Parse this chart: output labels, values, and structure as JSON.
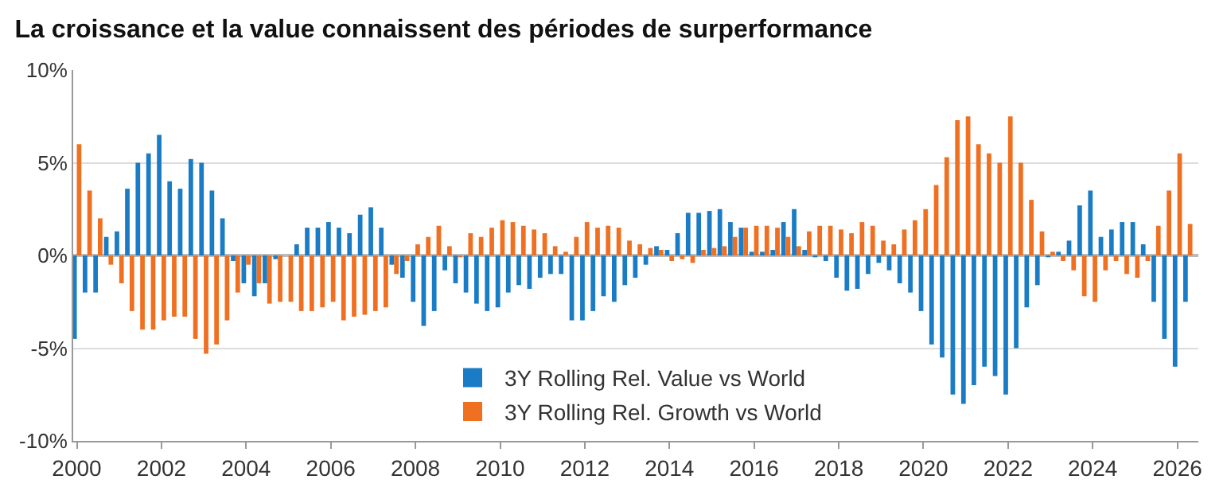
{
  "chart_data": {
    "type": "bar",
    "title": "La croissance et la value connaissent des périodes de surperformance",
    "x": [
      "2000-01",
      "2000-04",
      "2000-07",
      "2000-10",
      "2001-01",
      "2001-04",
      "2001-07",
      "2001-10",
      "2002-01",
      "2002-04",
      "2002-07",
      "2002-10",
      "2003-01",
      "2003-04",
      "2003-07",
      "2003-10",
      "2004-01",
      "2004-04",
      "2004-07",
      "2004-10",
      "2005-01",
      "2005-04",
      "2005-07",
      "2005-10",
      "2006-01",
      "2006-04",
      "2006-07",
      "2006-10",
      "2007-01",
      "2007-04",
      "2007-07",
      "2007-10",
      "2008-01",
      "2008-04",
      "2008-07",
      "2008-10",
      "2009-01",
      "2009-04",
      "2009-07",
      "2009-10",
      "2010-01",
      "2010-04",
      "2010-07",
      "2010-10",
      "2011-01",
      "2011-04",
      "2011-07",
      "2011-10",
      "2012-01",
      "2012-04",
      "2012-07",
      "2012-10",
      "2013-01",
      "2013-04",
      "2013-07",
      "2013-10",
      "2014-01",
      "2014-04",
      "2014-07",
      "2014-10",
      "2015-01",
      "2015-04",
      "2015-07",
      "2015-10",
      "2016-01",
      "2016-04",
      "2016-07",
      "2016-10",
      "2017-01",
      "2017-04",
      "2017-07",
      "2017-10",
      "2018-01",
      "2018-04",
      "2018-07",
      "2018-10",
      "2019-01",
      "2019-04",
      "2019-07",
      "2019-10",
      "2020-01",
      "2020-04",
      "2020-07",
      "2020-10",
      "2021-01",
      "2021-04",
      "2021-07",
      "2021-10",
      "2022-01",
      "2022-04",
      "2022-07",
      "2022-10",
      "2023-01",
      "2023-04",
      "2023-07",
      "2023-10",
      "2024-01",
      "2024-04",
      "2024-07",
      "2024-10",
      "2025-01",
      "2025-04",
      "2025-07",
      "2025-10",
      "2026-01",
      "2026-04"
    ],
    "series": [
      {
        "name": "3Y Rolling Rel. Value vs World",
        "color": "#1a7cc4",
        "values": [
          -4.5,
          -2,
          -2,
          1,
          1.3,
          3.6,
          5,
          5.5,
          6.5,
          4,
          3.6,
          5.2,
          5,
          3.5,
          2,
          -0.3,
          -1.5,
          -2.2,
          -1.5,
          -0.2,
          0,
          0.6,
          1.5,
          1.5,
          1.8,
          1.5,
          1.2,
          2.2,
          2.6,
          1.5,
          -0.5,
          -1.2,
          -2.5,
          -3.8,
          -3,
          -0.8,
          -1.5,
          -2,
          -2.6,
          -3,
          -2.8,
          -2,
          -1.6,
          -1.8,
          -1.2,
          -1,
          -1,
          -3.5,
          -3.5,
          -3,
          -2.2,
          -2.5,
          -1.6,
          -1.2,
          -0.5,
          0.5,
          0.3,
          1.2,
          2.3,
          2.3,
          2.4,
          2.5,
          1.8,
          1.5,
          0.2,
          0.2,
          0.3,
          1.8,
          2.5,
          0.3,
          -0.1,
          -0.3,
          -1.2,
          -1.9,
          -1.8,
          -1,
          -0.4,
          -0.8,
          -1.5,
          -2,
          -3,
          -4.8,
          -5.5,
          -7.5,
          -8,
          -7,
          -6,
          -6.5,
          -7.5,
          -5,
          -2.8,
          -1.6,
          -0.1,
          0.2,
          0.8,
          2.7,
          3.5,
          1,
          1.4,
          1.8,
          1.8,
          0.6,
          -2.5,
          -4.5,
          -6,
          -2.5
        ]
      },
      {
        "name": "3Y Rolling Rel. Growth vs World",
        "color": "#f07022",
        "values": [
          6,
          3.5,
          2,
          -0.5,
          -1.5,
          -3,
          -4,
          -4,
          -3.5,
          -3.3,
          -3.3,
          -4.5,
          -5.3,
          -4.8,
          -3.5,
          -2,
          -0.5,
          -1.5,
          -2.6,
          -2.5,
          -2.5,
          -3,
          -3,
          -2.8,
          -2.5,
          -3.5,
          -3.3,
          -3.2,
          -3,
          -2.8,
          -1,
          -0.3,
          0.6,
          1,
          1.6,
          0.5,
          -0.1,
          1.2,
          1,
          1.5,
          1.9,
          1.8,
          1.6,
          1.4,
          1.2,
          0.5,
          0.2,
          1,
          1.8,
          1.5,
          1.6,
          1.5,
          0.8,
          0.6,
          0.4,
          0.3,
          -0.3,
          -0.2,
          -0.4,
          0.3,
          0.4,
          0.5,
          1,
          1.5,
          1.6,
          1.6,
          1.5,
          1,
          0.5,
          1.3,
          1.6,
          1.6,
          1.4,
          1.2,
          1.8,
          1.6,
          0.8,
          0.6,
          1.4,
          1.9,
          2.5,
          3.8,
          5.3,
          7.3,
          7.5,
          6,
          5.5,
          5,
          7.5,
          5,
          3,
          1.3,
          0.2,
          -0.3,
          -0.8,
          -2.2,
          -2.5,
          -0.8,
          -0.3,
          -1,
          -1.2,
          -0.3,
          1.6,
          3.5,
          5.5,
          1.7
        ]
      }
    ],
    "xlim": [
      "1999-12-01",
      "2026-07-01"
    ],
    "xticks": [
      {
        "value": "2000",
        "label": "2000"
      },
      {
        "value": "2002",
        "label": "2002"
      },
      {
        "value": "2004",
        "label": "2004"
      },
      {
        "value": "2006",
        "label": "2006"
      },
      {
        "value": "2008",
        "label": "2008"
      },
      {
        "value": "2010",
        "label": "2010"
      },
      {
        "value": "2012",
        "label": "2012"
      },
      {
        "value": "2014",
        "label": "2014"
      },
      {
        "value": "2016",
        "label": "2016"
      },
      {
        "value": "2018",
        "label": "2018"
      },
      {
        "value": "2020",
        "label": "2020"
      },
      {
        "value": "2022",
        "label": "2022"
      },
      {
        "value": "2024",
        "label": "2024"
      },
      {
        "value": "2026",
        "label": "2026"
      }
    ],
    "ylim": [
      -10,
      10
    ],
    "yticks": [
      {
        "value": -10,
        "label": "-10%"
      },
      {
        "value": -5,
        "label": "-5%"
      },
      {
        "value": 0,
        "label": "0%"
      },
      {
        "value": 5,
        "label": "5%"
      },
      {
        "value": 10,
        "label": "10%"
      }
    ],
    "grid": "y",
    "legend": "bottom"
  }
}
